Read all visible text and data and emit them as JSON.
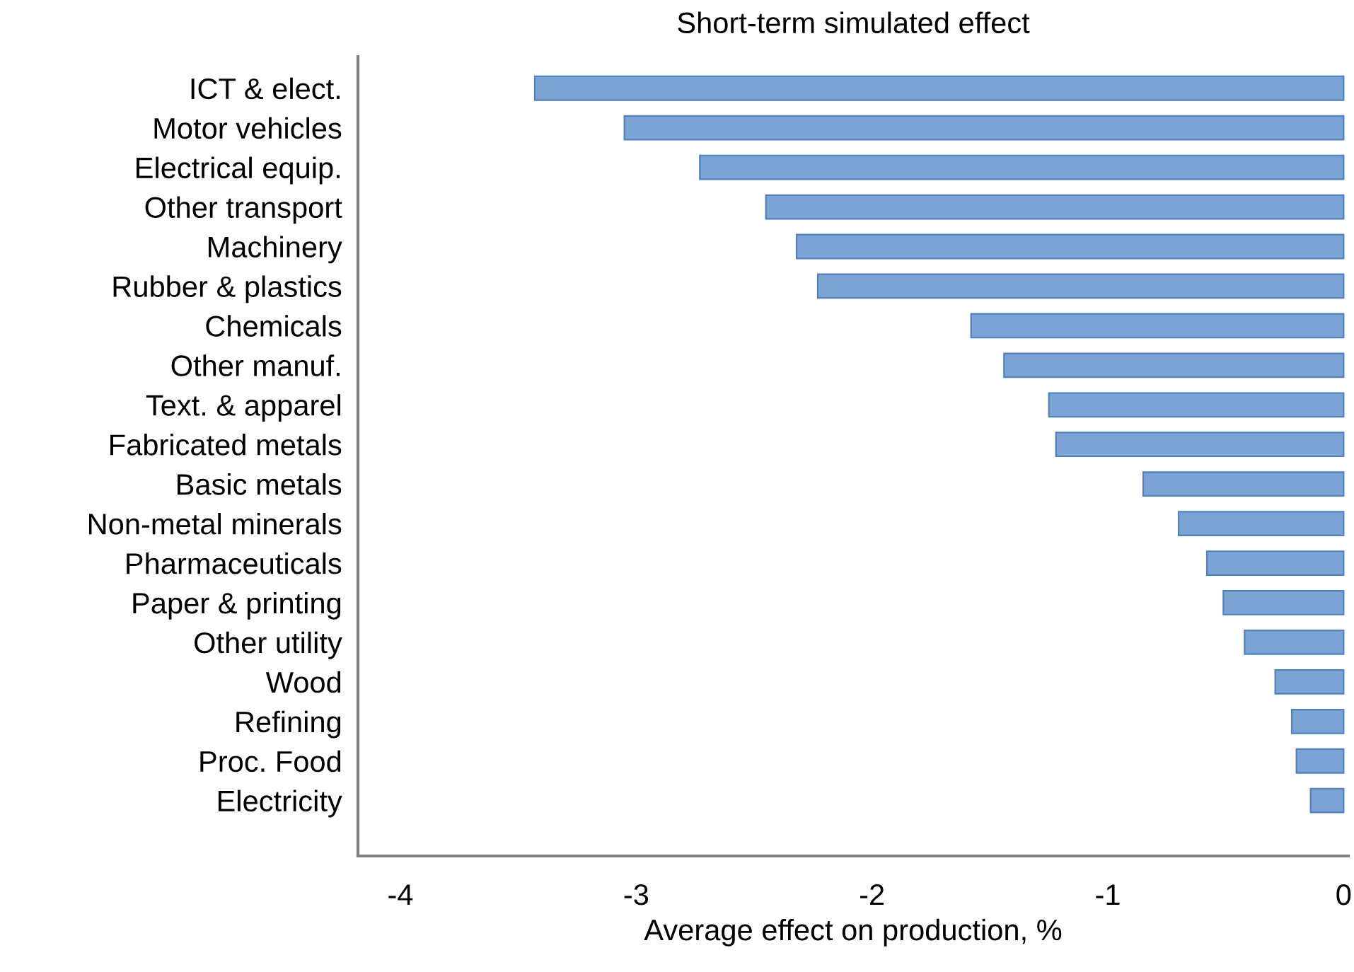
{
  "chart_data": {
    "type": "bar",
    "orientation": "horizontal",
    "title": "Short-term simulated effect",
    "xlabel": "Average effect on production, %",
    "categories": [
      "ICT & elect.",
      "Motor vehicles",
      "Electrical equip.",
      "Other transport",
      "Machinery",
      "Rubber & plastics",
      "Chemicals",
      "Other manuf.",
      "Text. & apparel",
      "Fabricated metals",
      "Basic metals",
      "Non-metal minerals",
      "Pharmaceuticals",
      "Paper & printing",
      "Other utility",
      "Wood",
      "Refining",
      "Proc. Food",
      "Electricity"
    ],
    "values": [
      -3.43,
      -3.05,
      -2.73,
      -2.45,
      -2.32,
      -2.23,
      -1.58,
      -1.44,
      -1.25,
      -1.22,
      -0.85,
      -0.7,
      -0.58,
      -0.51,
      -0.42,
      -0.29,
      -0.22,
      -0.2,
      -0.14
    ],
    "color": "#7ba3d3",
    "xlim": [
      -4.18,
      0.02
    ],
    "xticks": [
      -4,
      -3,
      -2,
      -1,
      0
    ],
    "grid": false,
    "legend": false
  }
}
